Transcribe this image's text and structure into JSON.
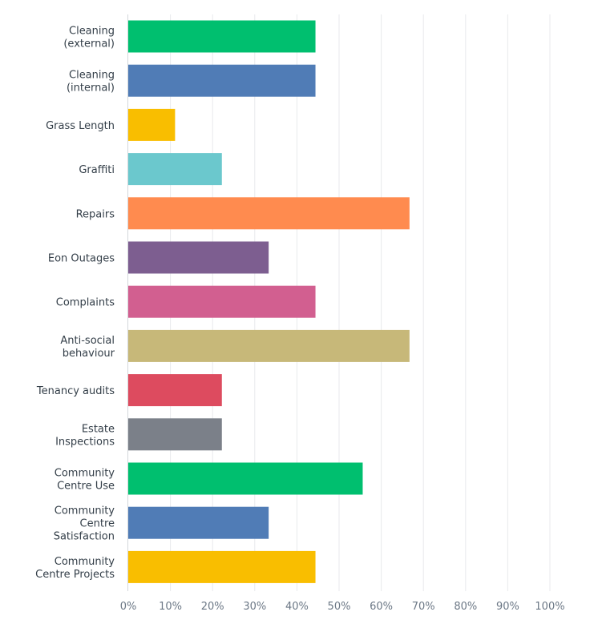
{
  "chart_data": {
    "type": "bar",
    "orientation": "horizontal",
    "categories": [
      [
        "Cleaning",
        "(external)"
      ],
      [
        "Cleaning",
        "(internal)"
      ],
      [
        "Grass Length"
      ],
      [
        "Graffiti"
      ],
      [
        "Repairs"
      ],
      [
        "Eon Outages"
      ],
      [
        "Complaints"
      ],
      [
        "Anti-social",
        "behaviour"
      ],
      [
        "Tenancy audits"
      ],
      [
        "Estate",
        "Inspections"
      ],
      [
        "Community",
        "Centre Use"
      ],
      [
        "Community",
        "Centre",
        "Satisfaction"
      ],
      [
        "Community",
        "Centre Projects"
      ]
    ],
    "values": [
      44.4,
      44.4,
      11.1,
      22.2,
      66.7,
      33.3,
      44.4,
      66.7,
      22.2,
      22.2,
      55.6,
      33.3,
      44.4
    ],
    "colors": [
      "#00bf6f",
      "#507cb6",
      "#f9be00",
      "#6bc8cd",
      "#ff8b4f",
      "#7d5e90",
      "#d25f90",
      "#c7b879",
      "#dd4b5f",
      "#7b8089",
      "#00bf6f",
      "#507cb6",
      "#f9be00"
    ],
    "xticks": [
      "0%",
      "10%",
      "20%",
      "30%",
      "40%",
      "50%",
      "60%",
      "70%",
      "80%",
      "90%",
      "100%"
    ],
    "xlim": [
      0,
      100
    ],
    "grid": true,
    "title": "",
    "xlabel": "",
    "ylabel": ""
  }
}
